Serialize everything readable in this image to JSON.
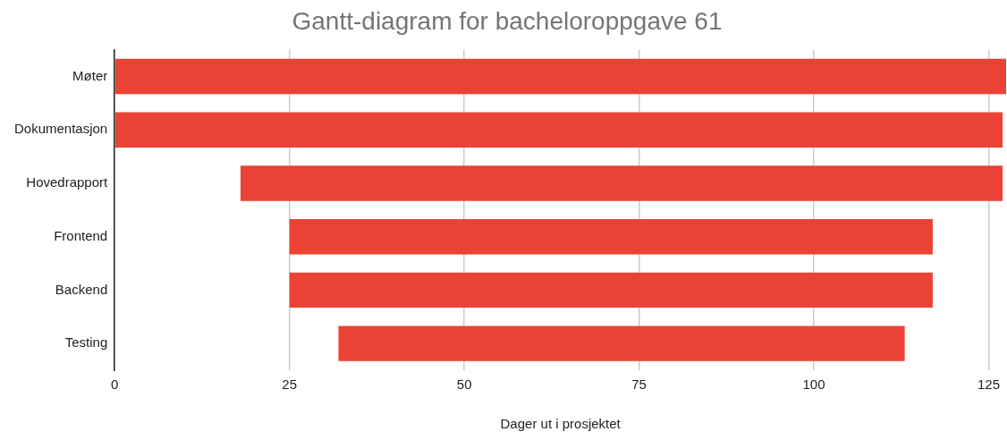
{
  "chart_data": {
    "type": "bar",
    "orientation": "horizontal",
    "title": "Gantt-diagram for bacheloroppgave 61",
    "xlabel": "Dager ut i prosjektet",
    "categories": [
      "Møter",
      "Dokumentasjon",
      "Hovedrapport",
      "Frontend",
      "Backend",
      "Testing"
    ],
    "base": [
      0,
      0,
      18,
      25,
      25,
      32
    ],
    "values": [
      127.5,
      127,
      109,
      92,
      92,
      81
    ],
    "color": "#ea4335",
    "xlim": [
      0,
      127.5
    ],
    "xticks": [
      0,
      25,
      50,
      75,
      100,
      125
    ],
    "grid": "x",
    "legend": false
  }
}
